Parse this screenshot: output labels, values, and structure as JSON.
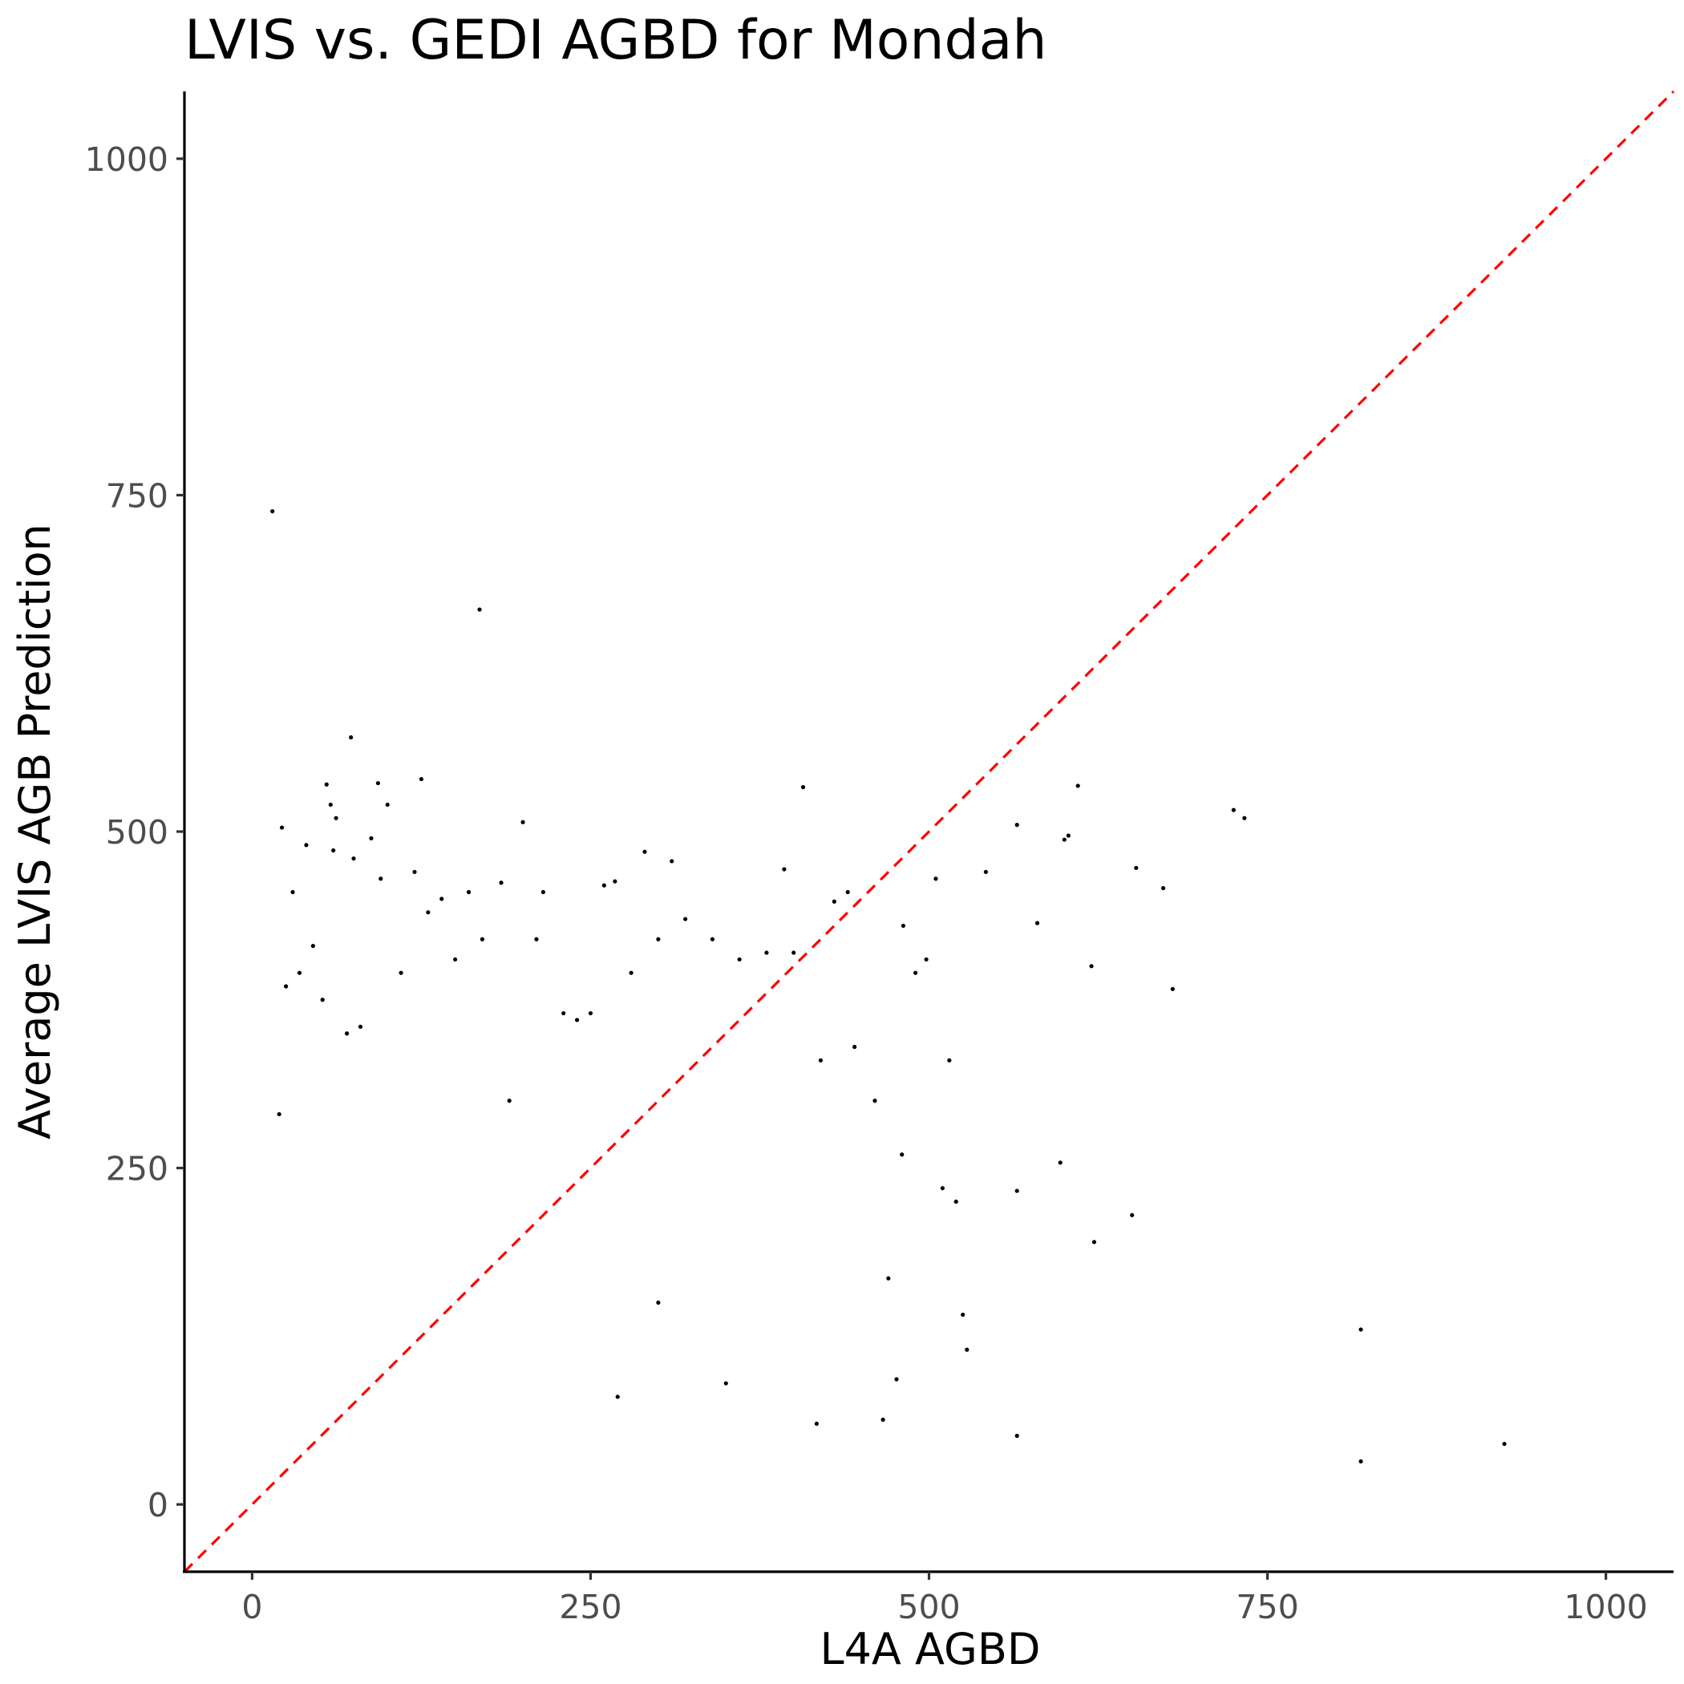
{
  "chart_data": {
    "type": "scatter",
    "title": "LVIS vs. GEDI AGBD for Mondah",
    "xlabel": "L4A AGBD",
    "ylabel": "Average LVIS AGB Prediction",
    "xlim": [
      -50,
      1050
    ],
    "ylim": [
      -50,
      1050
    ],
    "xticks": [
      0,
      250,
      500,
      750,
      1000
    ],
    "yticks": [
      0,
      250,
      500,
      750,
      1000
    ],
    "xtick_labels": [
      "0",
      "250",
      "500",
      "750",
      "1000"
    ],
    "ytick_labels": [
      "0",
      "250",
      "500",
      "750",
      "1000"
    ],
    "grid": false,
    "point_color": "#000000",
    "reference_line": {
      "slope": 1,
      "intercept": 0,
      "style": "dashed",
      "color": "#ff0000"
    },
    "series": [
      {
        "x": [
          15,
          168,
          73,
          55,
          58,
          62,
          93,
          125,
          200,
          407,
          725,
          733,
          290,
          310,
          268,
          393,
          542,
          565,
          580,
          600,
          610,
          653,
          673,
          680,
          620,
          603,
          597,
          622,
          565,
          505,
          650,
          819,
          925,
          819,
          565,
          466,
          417,
          476,
          470,
          525,
          528,
          515,
          498,
          481,
          440,
          430,
          520,
          510,
          480,
          380,
          350,
          300,
          270,
          250,
          210,
          184,
          160,
          140,
          120,
          100,
          88,
          75,
          60,
          40,
          30,
          22,
          20,
          25,
          35,
          45,
          52,
          70,
          80,
          95,
          110,
          130,
          150,
          170,
          190,
          215,
          230,
          240,
          260,
          280,
          300,
          320,
          340,
          360,
          400,
          420,
          445,
          460,
          490
        ],
        "y": [
          738,
          665,
          570,
          535,
          520,
          510,
          536,
          539,
          507,
          533,
          516,
          510,
          485,
          478,
          463,
          472,
          470,
          505,
          432,
          494,
          534,
          473,
          458,
          383,
          400,
          497,
          254,
          195,
          233,
          465,
          215,
          130,
          45,
          32,
          51,
          63,
          60,
          93,
          168,
          141,
          115,
          330,
          405,
          430,
          455,
          448,
          225,
          235,
          260,
          410,
          90,
          150,
          80,
          365,
          420,
          462,
          455,
          450,
          470,
          520,
          495,
          480,
          486,
          490,
          455,
          503,
          290,
          385,
          395,
          415,
          375,
          350,
          355,
          465,
          395,
          440,
          405,
          420,
          300,
          455,
          365,
          360,
          460,
          395,
          420,
          435,
          420,
          405,
          410,
          330,
          340,
          300,
          395
        ]
      }
    ]
  }
}
